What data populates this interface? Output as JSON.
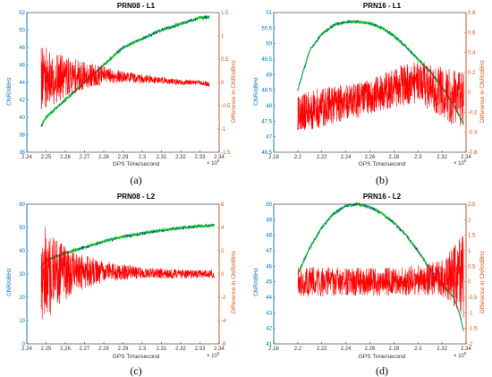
{
  "colors": {
    "left_axis": "#0072BD",
    "right_axis": "#D95319",
    "cnr_a": "#0000CC",
    "cnr_b": "#00DD00",
    "diff": "#FF0000"
  },
  "chart_data": [
    {
      "type": "line",
      "title": "PRN08 - L1",
      "caption": "(a)",
      "xlabel": "GPS Time/second",
      "ylabel_left": "CNR/dBHz",
      "ylabel_right": "Difference in CNR/dBHz",
      "x_exponent_label": "× 10",
      "x_exponent_power": "5",
      "xlim": [
        2.24,
        2.34
      ],
      "xticks": [
        "2.24",
        "2.25",
        "2.26",
        "2.27",
        "2.28",
        "2.29",
        "2.3",
        "2.31",
        "2.32",
        "2.33",
        "2.34"
      ],
      "ylim_left": [
        36,
        52
      ],
      "yticks_left": [
        "36",
        "38",
        "40",
        "42",
        "44",
        "46",
        "48",
        "50",
        "52"
      ],
      "ylim_right": [
        -1.5,
        1.5
      ],
      "yticks_right": [
        "-1.5",
        "-1",
        "-0.5",
        "0",
        "0.5",
        "1",
        "1.5"
      ],
      "cnr_series": {
        "x": [
          2.2475,
          2.25,
          2.26,
          2.27,
          2.28,
          2.29,
          2.3,
          2.31,
          2.32,
          2.33,
          2.335
        ],
        "y": [
          39.0,
          40.0,
          42.0,
          44.0,
          46.0,
          48.0,
          49.0,
          50.0,
          50.7,
          51.4,
          51.5
        ]
      },
      "diff_series": {
        "x": [
          2.2475,
          2.26,
          2.27,
          2.28,
          2.29,
          2.3,
          2.31,
          2.32,
          2.33,
          2.335
        ],
        "y": [
          0.1,
          0.1,
          0.15,
          0.15,
          0.12,
          0.08,
          0.05,
          0.0,
          0.0,
          -0.05
        ],
        "noise": [
          0.7,
          0.45,
          0.3,
          0.2,
          0.12,
          0.1,
          0.08,
          0.06,
          0.05,
          0.05
        ]
      }
    },
    {
      "type": "line",
      "title": "PRN16 - L1",
      "caption": "(b)",
      "xlabel": "GPS Time/second",
      "ylabel_left": "CNR/dBHz",
      "ylabel_right": "Difference in CNR/dBHz",
      "x_exponent_label": "× 10",
      "x_exponent_power": "5",
      "xlim": [
        2.18,
        2.34
      ],
      "xticks": [
        "2.18",
        "2.2",
        "2.22",
        "2.24",
        "2.26",
        "2.28",
        "2.3",
        "2.32",
        "2.34"
      ],
      "ylim_left": [
        46.5,
        51
      ],
      "yticks_left": [
        "46.5",
        "47",
        "47.5",
        "48",
        "48.5",
        "49",
        "49.5",
        "50",
        "50.5",
        "51"
      ],
      "ylim_right": [
        -0.6,
        0.8
      ],
      "yticks_right": [
        "-0.6",
        "-0.4",
        "-0.2",
        "0",
        "0.2",
        "0.4",
        "0.6",
        "0.8"
      ],
      "cnr_series": {
        "x": [
          2.2,
          2.21,
          2.22,
          2.23,
          2.24,
          2.25,
          2.26,
          2.27,
          2.28,
          2.29,
          2.3,
          2.31,
          2.32,
          2.33,
          2.338
        ],
        "y": [
          48.5,
          49.8,
          50.3,
          50.6,
          50.7,
          50.7,
          50.65,
          50.5,
          50.25,
          49.9,
          49.5,
          49.1,
          48.6,
          48.0,
          47.4
        ]
      },
      "diff_series": {
        "x": [
          2.2,
          2.22,
          2.24,
          2.26,
          2.28,
          2.3,
          2.32,
          2.338
        ],
        "y": [
          -0.2,
          -0.15,
          -0.1,
          -0.05,
          0.05,
          0.1,
          0.0,
          -0.1
        ],
        "noise": [
          0.2,
          0.2,
          0.18,
          0.18,
          0.2,
          0.22,
          0.25,
          0.3
        ]
      }
    },
    {
      "type": "line",
      "title": "PRN08 - L2",
      "caption": "(c)",
      "xlabel": "GPS Time/second",
      "ylabel_left": "CNR/dBHz",
      "ylabel_right": "Difference in CNR/dBHz",
      "x_exponent_label": "× 10",
      "x_exponent_power": "5",
      "xlim": [
        2.24,
        2.34
      ],
      "xticks": [
        "2.24",
        "2.25",
        "2.26",
        "2.27",
        "2.28",
        "2.29",
        "2.3",
        "2.31",
        "2.32",
        "2.33",
        "2.34"
      ],
      "ylim_left": [
        0,
        60
      ],
      "yticks_left": [
        "0",
        "10",
        "20",
        "30",
        "40",
        "50",
        "60"
      ],
      "ylim_right": [
        -6,
        6
      ],
      "yticks_right": [
        "-6",
        "-4",
        "-2",
        "0",
        "2",
        "4",
        "6"
      ],
      "cnr_series": {
        "x": [
          2.2475,
          2.25,
          2.26,
          2.27,
          2.28,
          2.29,
          2.3,
          2.31,
          2.32,
          2.33,
          2.3375
        ],
        "y": [
          33.0,
          36.0,
          39.0,
          41.5,
          44.0,
          46.0,
          47.5,
          48.8,
          49.8,
          50.6,
          51.0
        ]
      },
      "diff_series": {
        "x": [
          2.2475,
          2.255,
          2.265,
          2.28,
          2.3,
          2.32,
          2.3375
        ],
        "y": [
          0.0,
          0.0,
          0.2,
          0.2,
          0.1,
          0.0,
          0.0
        ],
        "noise": [
          4.5,
          3.0,
          1.8,
          0.9,
          0.5,
          0.4,
          0.35
        ]
      }
    },
    {
      "type": "line",
      "title": "PRN16 - L2",
      "caption": "(d)",
      "xlabel": "GPS Time/second",
      "ylabel_left": "CNR/dBHz",
      "ylabel_right": "Difference in CNR/dBHz",
      "x_exponent_label": "× 10",
      "x_exponent_power": "5",
      "xlim": [
        2.18,
        2.34
      ],
      "xticks": [
        "2.18",
        "2.2",
        "2.22",
        "2.24",
        "2.26",
        "2.28",
        "2.3",
        "2.32",
        "2.34"
      ],
      "ylim_left": [
        41,
        50
      ],
      "yticks_left": [
        "41",
        "42",
        "43",
        "44",
        "45",
        "46",
        "47",
        "48",
        "49",
        "50"
      ],
      "ylim_right": [
        -2,
        2.5
      ],
      "yticks_right": [
        "-2",
        "-1.5",
        "-1",
        "-0.5",
        "0",
        "0.5",
        "1",
        "1.5",
        "2",
        "2.5"
      ],
      "cnr_series": {
        "x": [
          2.2,
          2.21,
          2.22,
          2.23,
          2.24,
          2.25,
          2.26,
          2.27,
          2.28,
          2.29,
          2.3,
          2.31,
          2.32,
          2.33,
          2.335,
          2.338
        ],
        "y": [
          45.5,
          47.2,
          48.5,
          49.4,
          49.9,
          50.0,
          49.8,
          49.4,
          48.8,
          48.0,
          47.0,
          45.8,
          44.8,
          44.0,
          42.8,
          41.8
        ]
      },
      "diff_series": {
        "x": [
          2.2,
          2.24,
          2.28,
          2.3,
          2.32,
          2.33,
          2.338
        ],
        "y": [
          0.0,
          0.0,
          0.0,
          0.05,
          0.1,
          0.2,
          0.2
        ],
        "noise": [
          0.5,
          0.45,
          0.45,
          0.5,
          0.6,
          1.0,
          1.4
        ]
      }
    }
  ]
}
